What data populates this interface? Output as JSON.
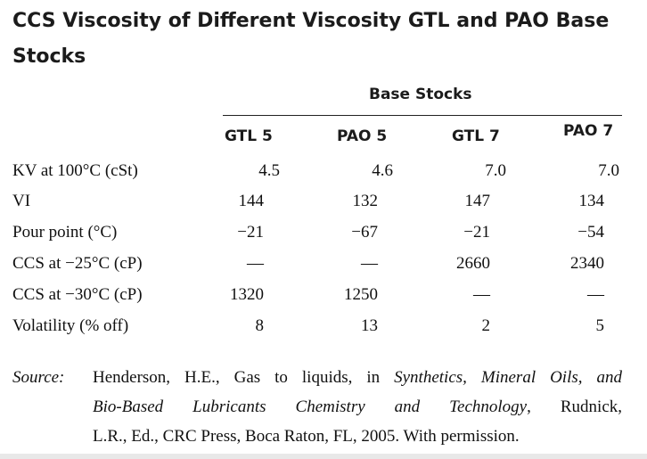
{
  "title": "CCS Viscosity of Different Viscosity GTL and PAO Base Stocks",
  "group_header": "Base Stocks",
  "columns": [
    "GTL 5",
    "PAO 5",
    "GTL 7",
    "PAO 7"
  ],
  "rows": [
    {
      "label": "KV at 100°C (cSt)",
      "values": [
        "4.5",
        "4.6",
        "7.0",
        "7.0"
      ]
    },
    {
      "label": "VI",
      "values": [
        "144",
        "132",
        "147",
        "134"
      ]
    },
    {
      "label": "Pour point (°C)",
      "values": [
        "−21",
        "−67",
        "−21",
        "−54"
      ]
    },
    {
      "label": "CCS at −25°C (cP)",
      "values": [
        "—",
        "—",
        "2660",
        "2340"
      ]
    },
    {
      "label": "CCS at −30°C (cP)",
      "values": [
        "1320",
        "1250",
        "—",
        "—"
      ]
    },
    {
      "label": "Volatility (% off)",
      "values": [
        "8",
        "13",
        "2",
        "5"
      ]
    }
  ],
  "source": {
    "label": "Source:",
    "line1_a": "Henderson, H.E., Gas to liquids, in ",
    "line1_b": "Synthetics, Mineral Oils, and",
    "line2_a": "Bio-Based Lubricants Chemistry and Technology",
    "line2_b": ", Rudnick,",
    "line3": "L.R., Ed., CRC Press, Boca Raton, FL, 2005. With permission."
  }
}
